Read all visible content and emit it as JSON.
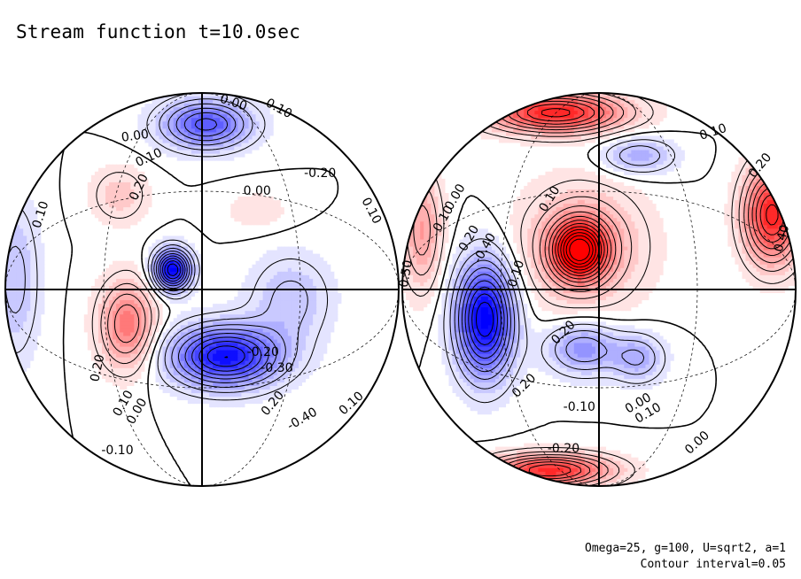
{
  "title": "Stream function t=10.0sec",
  "footer": {
    "params": "Omega=25, g=100, U=sqrt2, a=1",
    "contour_interval": "Contour interval=0.05"
  },
  "chart_data": {
    "type": "contour",
    "title": "Stream function t=10.0sec",
    "projection": "orthographic, two hemispheres",
    "contour_interval": 0.05,
    "color_scale": {
      "negative": "#0000ff",
      "zero": "#ffffff",
      "positive": "#ff0000"
    },
    "hemispheres": [
      {
        "name": "left-hemisphere",
        "extrema": [
          {
            "sign": 1,
            "amp": 0.25,
            "u": -0.38,
            "v": 0.18,
            "su": 0.14,
            "sv": 0.22
          },
          {
            "sign": 1,
            "amp": 0.1,
            "u": -0.42,
            "v": -0.48,
            "su": 0.14,
            "sv": 0.14
          },
          {
            "sign": 1,
            "amp": 0.05,
            "u": 0.28,
            "v": -0.4,
            "su": 0.17,
            "sv": 0.1
          },
          {
            "sign": -1,
            "amp": 0.45,
            "u": 0.12,
            "v": 0.34,
            "su": 0.27,
            "sv": 0.15
          },
          {
            "sign": -1,
            "amp": 0.32,
            "u": 0.02,
            "v": -0.84,
            "su": 0.22,
            "sv": 0.12
          },
          {
            "sign": -1,
            "amp": 0.5,
            "u": -0.15,
            "v": -0.1,
            "su": 0.09,
            "sv": 0.1
          },
          {
            "sign": -1,
            "amp": 0.12,
            "u": 0.45,
            "v": 0.05,
            "su": 0.2,
            "sv": 0.22
          },
          {
            "sign": -1,
            "amp": 0.12,
            "u": -0.95,
            "v": -0.05,
            "su": 0.12,
            "sv": 0.4
          }
        ],
        "labels": [
          {
            "text": "0.10",
            "u": -0.82,
            "v": -0.38,
            "rot": -72
          },
          {
            "text": "0.00",
            "u": -0.34,
            "v": -0.78,
            "rot": -8
          },
          {
            "text": "0.10",
            "u": -0.27,
            "v": -0.67,
            "rot": -25
          },
          {
            "text": "0.20",
            "u": -0.32,
            "v": -0.52,
            "rot": -65
          },
          {
            "text": "0.00",
            "u": 0.16,
            "v": -0.95,
            "rot": 18
          },
          {
            "text": "0.10",
            "u": 0.39,
            "v": -0.92,
            "rot": 28
          },
          {
            "text": "-0.20",
            "u": 0.6,
            "v": -0.59,
            "rot": 0
          },
          {
            "text": "0.00",
            "u": 0.28,
            "v": -0.5,
            "rot": 0
          },
          {
            "text": "0.10",
            "u": 0.86,
            "v": -0.4,
            "rot": 62
          },
          {
            "text": "0.20",
            "u": -0.53,
            "v": 0.4,
            "rot": -78
          },
          {
            "text": "0.10",
            "u": -0.4,
            "v": 0.58,
            "rot": -60
          },
          {
            "text": "0.00",
            "u": -0.33,
            "v": 0.62,
            "rot": -60
          },
          {
            "text": "-0.10",
            "u": -0.43,
            "v": 0.82,
            "rot": 0
          },
          {
            "text": "-0.20",
            "u": 0.31,
            "v": 0.32,
            "rot": 0
          },
          {
            "text": "-0.30",
            "u": 0.38,
            "v": 0.4,
            "rot": 0
          },
          {
            "text": "-0.40",
            "u": 0.51,
            "v": 0.66,
            "rot": -30
          },
          {
            "text": "0.20",
            "u": 0.36,
            "v": 0.58,
            "rot": -50
          },
          {
            "text": "0.10",
            "u": 0.76,
            "v": 0.58,
            "rot": -42
          }
        ]
      },
      {
        "name": "right-hemisphere",
        "extrema": [
          {
            "sign": 1,
            "amp": 0.5,
            "u": -0.1,
            "v": -0.2,
            "su": 0.13,
            "sv": 0.14
          },
          {
            "sign": 1,
            "amp": 0.18,
            "u": -0.08,
            "v": -0.22,
            "su": 0.3,
            "sv": 0.3
          },
          {
            "sign": 1,
            "amp": 0.42,
            "u": 0.88,
            "v": -0.38,
            "su": 0.14,
            "sv": 0.24
          },
          {
            "sign": 1,
            "amp": 0.42,
            "u": -0.22,
            "v": -0.9,
            "su": 0.34,
            "sv": 0.1
          },
          {
            "sign": 1,
            "amp": 0.4,
            "u": -0.25,
            "v": 0.92,
            "su": 0.3,
            "sv": 0.08
          },
          {
            "sign": 1,
            "amp": 0.18,
            "u": -0.9,
            "v": -0.3,
            "su": 0.1,
            "sv": 0.3
          },
          {
            "sign": -1,
            "amp": 0.5,
            "u": -0.58,
            "v": 0.15,
            "su": 0.14,
            "sv": 0.28
          },
          {
            "sign": -1,
            "amp": 0.15,
            "u": 0.2,
            "v": -0.68,
            "su": 0.18,
            "sv": 0.09
          },
          {
            "sign": -1,
            "amp": 0.2,
            "u": -0.08,
            "v": 0.3,
            "su": 0.18,
            "sv": 0.13
          },
          {
            "sign": -1,
            "amp": 0.15,
            "u": 0.2,
            "v": 0.35,
            "su": 0.13,
            "sv": 0.12
          }
        ],
        "labels": [
          {
            "text": "0.10",
            "u": -0.25,
            "v": -0.46,
            "rot": -58
          },
          {
            "text": "0.10",
            "u": 0.58,
            "v": -0.8,
            "rot": -18
          },
          {
            "text": "0.20",
            "u": 0.82,
            "v": -0.63,
            "rot": -50
          },
          {
            "text": "0.40",
            "u": 0.93,
            "v": -0.26,
            "rot": -75
          },
          {
            "text": "0.10",
            "u": -0.42,
            "v": -0.08,
            "rot": -72
          },
          {
            "text": "0.10",
            "u": -0.79,
            "v": -0.36,
            "rot": -60
          },
          {
            "text": "0.00",
            "u": -0.73,
            "v": -0.47,
            "rot": -60
          },
          {
            "text": "0.20",
            "u": -0.66,
            "v": -0.26,
            "rot": -60
          },
          {
            "text": "-0.40",
            "u": -0.58,
            "v": -0.21,
            "rot": -60
          },
          {
            "text": "0.50",
            "u": -0.98,
            "v": -0.08,
            "rot": -80
          },
          {
            "text": "0.20",
            "u": -0.18,
            "v": 0.22,
            "rot": -45
          },
          {
            "text": "0.20",
            "u": -0.38,
            "v": 0.49,
            "rot": -45
          },
          {
            "text": "-0.10",
            "u": -0.1,
            "v": 0.6,
            "rot": 0
          },
          {
            "text": "-0.20",
            "u": -0.18,
            "v": 0.81,
            "rot": 0
          },
          {
            "text": "0.00",
            "u": 0.2,
            "v": 0.58,
            "rot": -30
          },
          {
            "text": "0.10",
            "u": 0.25,
            "v": 0.63,
            "rot": -30
          },
          {
            "text": "0.00",
            "u": 0.5,
            "v": 0.78,
            "rot": -42
          }
        ]
      }
    ]
  }
}
